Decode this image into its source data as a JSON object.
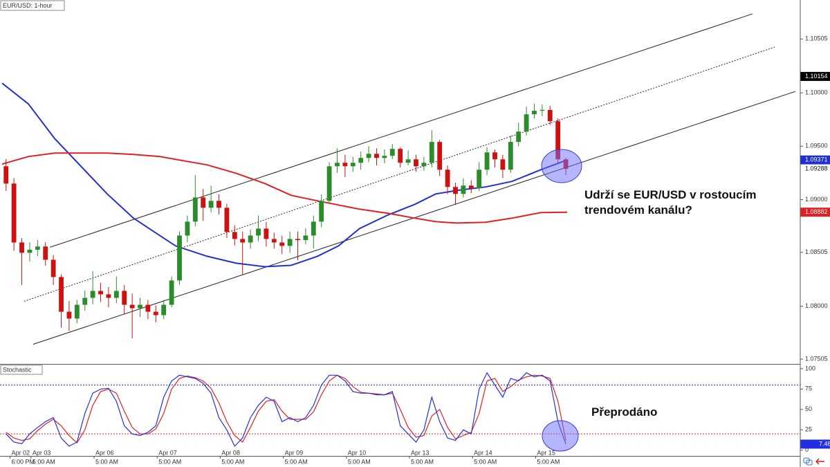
{
  "chart_data": [
    {
      "type": "candlestick",
      "title": "EUR/USD: 1-hour",
      "x": [
        1.5,
        4.5,
        7.5,
        10.5,
        13.5,
        16.5,
        19.5,
        22.5,
        25.5,
        28.5,
        31.5,
        34.5,
        37.5,
        40.5,
        43.5,
        46.5,
        49.5,
        52.5,
        55.5,
        58.5,
        61.5,
        64.5,
        67.5,
        70.5,
        73.5,
        76.5,
        79.5,
        82.5,
        85.5,
        88.5,
        91.5,
        94.5,
        97.5,
        100.5,
        103.5,
        106.5,
        109.5,
        112.5,
        115.5,
        118.5,
        121.5,
        124.5,
        127.5,
        130.5,
        133.5,
        136.5,
        139.5,
        142.5,
        145.5,
        148.5,
        151.5,
        154.5,
        157.5,
        160.5,
        163.5,
        166.5,
        169.5,
        172.5,
        175.5,
        178.5,
        181.5,
        184.5,
        187.5,
        190.5,
        193.5,
        196.5,
        199.5,
        202.5,
        205.5,
        208.5,
        211.5,
        214.5
      ],
      "open": [
        1.09312,
        1.0915,
        1.08598,
        1.08501,
        1.0853,
        1.0856,
        1.08436,
        1.08274,
        1.07949,
        1.07885,
        1.08014,
        1.08079,
        1.08144,
        1.08112,
        1.08079,
        1.08144,
        1.08014,
        1.07982,
        1.08014,
        1.07949,
        1.07917,
        1.08014,
        1.08242,
        1.08663,
        1.08793,
        1.0902,
        1.08923,
        1.08988,
        1.08923,
        1.08696,
        1.08631,
        1.08598,
        1.08663,
        1.08728,
        1.08631,
        1.08598,
        1.08566,
        1.08631,
        1.0862,
        1.08663,
        1.08793,
        1.08988,
        1.09312,
        1.09345,
        1.09312,
        1.09345,
        1.0939,
        1.09429,
        1.0939,
        1.0941,
        1.09475,
        1.09345,
        1.09377,
        1.09312,
        1.09345,
        1.0954,
        1.0928,
        1.09118,
        1.09053,
        1.09131,
        1.09105,
        1.0928,
        1.09442,
        1.09377,
        1.0928,
        1.0954,
        1.09637,
        1.09799,
        1.09832,
        1.0984,
        1.09734,
        1.09377
      ],
      "high": [
        1.0938,
        1.092,
        1.0864,
        1.086,
        1.0862,
        1.086,
        1.0848,
        1.083,
        1.0805,
        1.0806,
        1.0815,
        1.0833,
        1.0822,
        1.0818,
        1.0828,
        1.082,
        1.0812,
        1.0808,
        1.0806,
        1.0801,
        1.0806,
        1.0828,
        1.087,
        1.0885,
        1.0923,
        1.091,
        1.0913,
        1.0905,
        1.0896,
        1.0876,
        1.087,
        1.0872,
        1.0885,
        1.0879,
        1.0869,
        1.0866,
        1.087,
        1.087,
        1.0873,
        1.0885,
        1.0905,
        1.0935,
        1.0948,
        1.0942,
        1.094,
        1.0945,
        1.095,
        1.0948,
        1.0947,
        1.0952,
        1.0949,
        1.0946,
        1.0942,
        1.094,
        1.0965,
        1.0956,
        1.0932,
        1.0916,
        1.092,
        1.0918,
        1.0935,
        1.0949,
        1.0947,
        1.0942,
        1.096,
        1.0972,
        1.0987,
        1.099,
        1.0989,
        1.0988,
        1.0976,
        1.0939
      ],
      "low": [
        1.0908,
        1.0852,
        1.082,
        1.0842,
        1.0847,
        1.0838,
        1.082,
        1.078,
        1.0777,
        1.0784,
        1.0796,
        1.0802,
        1.0804,
        1.0799,
        1.0803,
        1.0793,
        1.077,
        1.079,
        1.0788,
        1.0785,
        1.0788,
        1.0799,
        1.082,
        1.086,
        1.0875,
        1.088,
        1.0888,
        1.0886,
        1.0864,
        1.0857,
        1.083,
        1.0854,
        1.0861,
        1.0856,
        1.0854,
        1.0849,
        1.085,
        1.0843,
        1.0858,
        1.0854,
        1.0874,
        1.0896,
        1.0925,
        1.0921,
        1.0926,
        1.0928,
        1.0935,
        1.0932,
        1.0934,
        1.0938,
        1.093,
        1.0932,
        1.0926,
        1.0927,
        1.093,
        1.0922,
        1.0905,
        1.0895,
        1.0902,
        1.0906,
        1.0908,
        1.0923,
        1.093,
        1.092,
        1.0925,
        1.095,
        1.096,
        1.0976,
        1.0978,
        1.097,
        1.0934,
        1.0923
      ],
      "close": [
        1.0915,
        1.08598,
        1.08501,
        1.0853,
        1.0856,
        1.08436,
        1.08274,
        1.07949,
        1.07885,
        1.08014,
        1.08079,
        1.08144,
        1.08112,
        1.08079,
        1.08144,
        1.08014,
        1.07982,
        1.08014,
        1.07949,
        1.07917,
        1.08014,
        1.08242,
        1.08663,
        1.08793,
        1.0902,
        1.08923,
        1.08988,
        1.08923,
        1.08696,
        1.08631,
        1.08598,
        1.08663,
        1.08728,
        1.08631,
        1.08598,
        1.08566,
        1.08631,
        1.0862,
        1.08663,
        1.08793,
        1.08988,
        1.09312,
        1.09345,
        1.09312,
        1.09345,
        1.0939,
        1.09429,
        1.0939,
        1.0941,
        1.09475,
        1.09345,
        1.09377,
        1.09312,
        1.09345,
        1.0954,
        1.0928,
        1.09118,
        1.09053,
        1.09131,
        1.09105,
        1.0928,
        1.09442,
        1.09377,
        1.0928,
        1.0954,
        1.09637,
        1.09799,
        1.09832,
        1.0984,
        1.09734,
        1.09377,
        1.09288
      ],
      "up_color": "#2c8c2c",
      "down_color": "#cc1111",
      "lines": [
        {
          "color": "#1f2fd0",
          "x": [
            0,
            10,
            20,
            30,
            40,
            50,
            60,
            66,
            78,
            89,
            100,
            110,
            120,
            128,
            136,
            147,
            157,
            165,
            173,
            184,
            194,
            205,
            215
          ],
          "values": [
            1.10091,
            1.09896,
            1.09572,
            1.09312,
            1.09053,
            1.08826,
            1.08663,
            1.08566,
            1.08469,
            1.08404,
            1.08371,
            1.08384,
            1.08469,
            1.08566,
            1.08728,
            1.08858,
            1.08955,
            1.09053,
            1.09085,
            1.09118,
            1.0917,
            1.0928,
            1.09371
          ]
        },
        {
          "color": "#e02020",
          "x": [
            0,
            10,
            20,
            30,
            40,
            50,
            60,
            66,
            78,
            89,
            100,
            110,
            120,
            128,
            136,
            147,
            157,
            165,
            173,
            184,
            194,
            205,
            215
          ],
          "values": [
            1.09332,
            1.09403,
            1.09436,
            1.09436,
            1.09436,
            1.09423,
            1.09403,
            1.09377,
            1.09325,
            1.09247,
            1.0915,
            1.0904,
            1.08988,
            1.08949,
            1.0891,
            1.08871,
            1.08826,
            1.08793,
            1.0878,
            1.08787,
            1.08826,
            1.08878,
            1.08882
          ]
        }
      ],
      "channel": [
        {
          "dashed": false,
          "x": [
            18.2,
            285.5
          ],
          "values": [
            1.08553,
            1.1074
          ]
        },
        {
          "dashed": true,
          "x": [
            8.4,
            294
          ],
          "values": [
            1.08047,
            1.10429
          ]
        },
        {
          "dashed": false,
          "x": [
            11.8,
            301.8
          ],
          "values": [
            1.07644,
            1.10013
          ]
        }
      ],
      "price_tags": [
        1.10154,
        1.09371,
        1.09288,
        1.08882
      ],
      "price_tag_colors": [
        "#000000",
        "#1f2fd0",
        "#ffffff",
        "#e02020"
      ],
      "annotation": [
        "Udrží se EUR/USD v rostoucím",
        "trendovém kanálu?"
      ],
      "xlim": [
        -0.8,
        303.7
      ],
      "ylim": [
        1.0746,
        1.1087
      ],
      "yticks": [
        1.10505,
        {
          "value": 1.1,
          "label": "1.10000"
        },
        {
          "value": 1.095,
          "label": "1.09500"
        },
        {
          "value": 1.09,
          "label": "1.09000"
        },
        1.08505,
        {
          "value": 1.08,
          "label": "1.08000"
        },
        1.07505
      ]
    },
    {
      "type": "line",
      "title": "Stochastic",
      "x": [
        1.5,
        4.5,
        7.5,
        10.5,
        13.5,
        16.5,
        19.5,
        22.5,
        25.5,
        28.5,
        31.5,
        34.5,
        37.5,
        40.5,
        43.5,
        46.5,
        49.5,
        52.5,
        55.5,
        58.5,
        61.5,
        64.5,
        67.5,
        70.5,
        73.5,
        76.5,
        79.5,
        82.5,
        85.5,
        88.5,
        91.5,
        94.5,
        97.5,
        100.5,
        103.5,
        106.5,
        109.5,
        112.5,
        115.5,
        118.5,
        121.5,
        124.5,
        127.5,
        130.5,
        133.5,
        136.5,
        139.5,
        142.5,
        145.5,
        148.5,
        151.5,
        154.5,
        157.5,
        160.5,
        163.5,
        166.5,
        169.5,
        172.5,
        175.5,
        178.5,
        181.5,
        184.5,
        187.5,
        190.5,
        193.5,
        196.5,
        199.5,
        202.5,
        205.5,
        208.5,
        211.5,
        214.5
      ],
      "series": [
        {
          "color": "#2030e0",
          "values": [
            20,
            10,
            8,
            20,
            28,
            35,
            40,
            15,
            5,
            10,
            45,
            70,
            75,
            76,
            60,
            30,
            20,
            18,
            22,
            30,
            65,
            85,
            92,
            90,
            88,
            82,
            70,
            40,
            25,
            5,
            15,
            40,
            55,
            65,
            60,
            35,
            40,
            35,
            40,
            55,
            80,
            92,
            92,
            85,
            72,
            70,
            70,
            68,
            68,
            72,
            30,
            20,
            10,
            25,
            65,
            35,
            15,
            12,
            25,
            20,
            75,
            95,
            80,
            65,
            88,
            85,
            95,
            90,
            92,
            85,
            35,
            7.48
          ]
        },
        {
          "color": "#e02020",
          "values": [
            22,
            15,
            12,
            14,
            24,
            32,
            38,
            30,
            18,
            9,
            25,
            55,
            72,
            75,
            70,
            48,
            28,
            20,
            20,
            26,
            45,
            75,
            88,
            91,
            89,
            85,
            76,
            58,
            35,
            18,
            10,
            28,
            48,
            60,
            62,
            48,
            38,
            38,
            38,
            47,
            68,
            85,
            92,
            88,
            78,
            71,
            70,
            69,
            68,
            70,
            50,
            28,
            16,
            18,
            42,
            50,
            28,
            14,
            18,
            22,
            45,
            85,
            88,
            72,
            78,
            86,
            90,
            92,
            91,
            88,
            60,
            12
          ]
        }
      ],
      "levels": [
        {
          "value": 80,
          "color": "#2030e0"
        },
        {
          "value": 20,
          "color": "#e02020"
        }
      ],
      "annotation": "Přeprodáno",
      "xlim": [
        -0.8,
        303.7
      ],
      "ylim": [
        -7,
        105
      ],
      "yticks": [
        100,
        75,
        50,
        25,
        0
      ],
      "xticks": [
        {
          "value": 3,
          "label": "Apr 02",
          "time": "6:00 PM"
        },
        {
          "value": 11,
          "label": "Apr 03",
          "time": "5:00 AM"
        },
        {
          "value": 35,
          "label": "Apr 06",
          "time": "5:00 AM"
        },
        {
          "value": 59,
          "label": "Apr 07",
          "time": "5:00 AM"
        },
        {
          "value": 83,
          "label": "Apr 08",
          "time": "5:00 AM"
        },
        {
          "value": 107,
          "label": "Apr 09",
          "time": "5:00 AM"
        },
        {
          "value": 131,
          "label": "Apr 10",
          "time": "5:00 AM"
        },
        {
          "value": 155,
          "label": "Apr 13",
          "time": "5:00 AM"
        },
        {
          "value": 179,
          "label": "Apr 14",
          "time": "5:00 AM"
        },
        {
          "value": 203,
          "label": "Apr 15",
          "time": "5:00 AM"
        }
      ]
    }
  ]
}
